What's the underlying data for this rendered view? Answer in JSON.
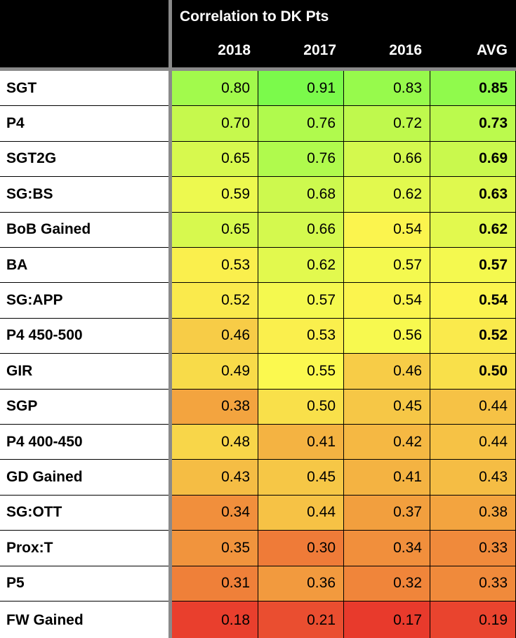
{
  "header": {
    "title": "Correlation to DK Pts",
    "columns": [
      "2018",
      "2017",
      "2016",
      "AVG"
    ]
  },
  "colors": {
    "header_bg": "#000000",
    "header_text": "#ffffff",
    "divider": "#8a8a8a",
    "scale_high": "#7bfa4b",
    "scale_mid": "#fbf94f",
    "scale_low": "#e83a2c"
  },
  "rows": [
    {
      "name": "SGT",
      "values": [
        "0.80",
        "0.91",
        "0.83",
        "0.85"
      ],
      "avg_bold": true
    },
    {
      "name": "P4",
      "values": [
        "0.70",
        "0.76",
        "0.72",
        "0.73"
      ],
      "avg_bold": true
    },
    {
      "name": "SGT2G",
      "values": [
        "0.65",
        "0.76",
        "0.66",
        "0.69"
      ],
      "avg_bold": true
    },
    {
      "name": "SG:BS",
      "values": [
        "0.59",
        "0.68",
        "0.62",
        "0.63"
      ],
      "avg_bold": true
    },
    {
      "name": "BoB Gained",
      "values": [
        "0.65",
        "0.66",
        "0.54",
        "0.62"
      ],
      "avg_bold": true
    },
    {
      "name": "BA",
      "values": [
        "0.53",
        "0.62",
        "0.57",
        "0.57"
      ],
      "avg_bold": true
    },
    {
      "name": "SG:APP",
      "values": [
        "0.52",
        "0.57",
        "0.54",
        "0.54"
      ],
      "avg_bold": true
    },
    {
      "name": "P4 450-500",
      "values": [
        "0.46",
        "0.53",
        "0.56",
        "0.52"
      ],
      "avg_bold": true
    },
    {
      "name": "GIR",
      "values": [
        "0.49",
        "0.55",
        "0.46",
        "0.50"
      ],
      "avg_bold": true
    },
    {
      "name": "SGP",
      "values": [
        "0.38",
        "0.50",
        "0.45",
        "0.44"
      ],
      "avg_bold": false
    },
    {
      "name": "P4 400-450",
      "values": [
        "0.48",
        "0.41",
        "0.42",
        "0.44"
      ],
      "avg_bold": false
    },
    {
      "name": "GD Gained",
      "values": [
        "0.43",
        "0.45",
        "0.41",
        "0.43"
      ],
      "avg_bold": false
    },
    {
      "name": "SG:OTT",
      "values": [
        "0.34",
        "0.44",
        "0.37",
        "0.38"
      ],
      "avg_bold": false
    },
    {
      "name": "Prox:T",
      "values": [
        "0.35",
        "0.30",
        "0.34",
        "0.33"
      ],
      "avg_bold": false
    },
    {
      "name": "P5",
      "values": [
        "0.31",
        "0.36",
        "0.32",
        "0.33"
      ],
      "avg_bold": false
    },
    {
      "name": "FW Gained",
      "values": [
        "0.18",
        "0.21",
        "0.17",
        "0.19"
      ],
      "avg_bold": false
    }
  ]
}
